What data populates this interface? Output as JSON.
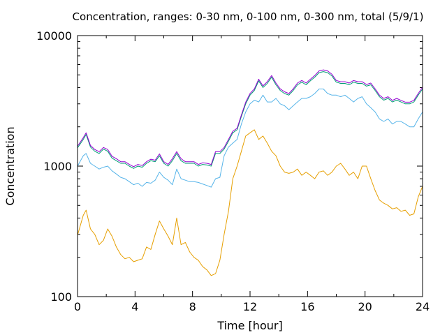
{
  "chart_data": {
    "type": "line",
    "title": "Concentration, ranges: 0-30 nm, 0-100 nm, 0-300 nm, total (5/9/1)",
    "xlabel": "Time [hour]",
    "ylabel": "Concentration",
    "xlim": [
      0,
      24
    ],
    "ylim": [
      100,
      10000
    ],
    "yscale": "log",
    "grid": false,
    "legend": "none",
    "x_ticks": [
      0,
      4,
      8,
      12,
      16,
      20,
      24
    ],
    "x_tick_labels": [
      "0",
      "4",
      "8",
      "12",
      "16",
      "20",
      "24"
    ],
    "y_ticks": [
      100,
      1000,
      10000
    ],
    "y_tick_labels": [
      "100",
      "1000",
      "10000"
    ],
    "series": [
      {
        "color": "#e69f00",
        "x": [
          0,
          0.4,
          0.6,
          0.9,
          1.2,
          1.5,
          1.8,
          2.1,
          2.4,
          2.7,
          3.0,
          3.3,
          3.6,
          3.9,
          4.2,
          4.5,
          4.8,
          5.1,
          5.4,
          5.7,
          6.0,
          6.3,
          6.6,
          6.9,
          7.2,
          7.5,
          7.8,
          8.1,
          8.4,
          8.7,
          9.0,
          9.3,
          9.6,
          9.9,
          10.2,
          10.5,
          10.8,
          11.1,
          11.4,
          11.7,
          12.0,
          12.3,
          12.6,
          12.9,
          13.2,
          13.5,
          13.8,
          14.1,
          14.4,
          14.7,
          15.0,
          15.3,
          15.6,
          15.9,
          16.2,
          16.5,
          16.8,
          17.1,
          17.4,
          17.7,
          18.0,
          18.3,
          18.6,
          18.9,
          19.2,
          19.5,
          19.8,
          20.1,
          20.4,
          20.7,
          21.0,
          21.3,
          21.6,
          21.9,
          22.2,
          22.5,
          22.8,
          23.1,
          23.4,
          23.7,
          24.0
        ],
        "values": [
          295,
          420,
          460,
          330,
          300,
          250,
          270,
          330,
          290,
          240,
          210,
          195,
          200,
          185,
          190,
          195,
          240,
          230,
          300,
          380,
          330,
          290,
          250,
          400,
          250,
          260,
          220,
          200,
          190,
          170,
          160,
          145,
          150,
          190,
          300,
          450,
          800,
          1000,
          1300,
          1700,
          1800,
          1900,
          1600,
          1700,
          1500,
          1300,
          1200,
          1000,
          900,
          880,
          900,
          950,
          850,
          900,
          850,
          800,
          900,
          920,
          850,
          900,
          1000,
          1050,
          950,
          850,
          900,
          800,
          1000,
          1000,
          800,
          650,
          550,
          520,
          500,
          470,
          480,
          450,
          460,
          420,
          430,
          580,
          700
        ]
      },
      {
        "color": "#56b4e9",
        "x": [
          0,
          0.4,
          0.6,
          0.9,
          1.2,
          1.5,
          1.8,
          2.1,
          2.4,
          2.7,
          3.0,
          3.3,
          3.6,
          3.9,
          4.2,
          4.5,
          4.8,
          5.1,
          5.4,
          5.7,
          6.0,
          6.3,
          6.6,
          6.9,
          7.2,
          7.5,
          7.8,
          8.1,
          8.4,
          8.7,
          9.0,
          9.3,
          9.6,
          9.9,
          10.2,
          10.5,
          10.8,
          11.1,
          11.4,
          11.7,
          12.0,
          12.3,
          12.6,
          12.9,
          13.2,
          13.5,
          13.8,
          14.1,
          14.4,
          14.7,
          15.0,
          15.3,
          15.6,
          15.9,
          16.2,
          16.5,
          16.8,
          17.1,
          17.4,
          17.7,
          18.0,
          18.3,
          18.6,
          18.9,
          19.2,
          19.5,
          19.8,
          20.1,
          20.4,
          20.7,
          21.0,
          21.3,
          21.6,
          21.9,
          22.2,
          22.5,
          22.8,
          23.1,
          23.4,
          23.7,
          24.0
        ],
        "values": [
          1000,
          1200,
          1250,
          1050,
          1000,
          950,
          980,
          1000,
          920,
          870,
          820,
          800,
          760,
          720,
          740,
          700,
          750,
          740,
          780,
          900,
          820,
          780,
          720,
          950,
          800,
          780,
          760,
          760,
          750,
          730,
          710,
          690,
          800,
          820,
          1200,
          1400,
          1500,
          1600,
          2100,
          2600,
          3000,
          3200,
          3100,
          3500,
          3100,
          3100,
          3300,
          3000,
          2900,
          2700,
          2900,
          3100,
          3300,
          3300,
          3400,
          3600,
          3900,
          3900,
          3600,
          3500,
          3500,
          3400,
          3500,
          3300,
          3100,
          3300,
          3400,
          3000,
          2800,
          2600,
          2300,
          2200,
          2300,
          2100,
          2200,
          2200,
          2100,
          2000,
          2000,
          2300,
          2600
        ]
      },
      {
        "color": "#009e73",
        "x": [
          0,
          0.4,
          0.6,
          0.9,
          1.2,
          1.5,
          1.8,
          2.1,
          2.4,
          2.7,
          3.0,
          3.3,
          3.6,
          3.9,
          4.2,
          4.5,
          4.8,
          5.1,
          5.4,
          5.7,
          6.0,
          6.3,
          6.6,
          6.9,
          7.2,
          7.5,
          7.8,
          8.1,
          8.4,
          8.7,
          9.0,
          9.3,
          9.6,
          9.9,
          10.2,
          10.5,
          10.8,
          11.1,
          11.4,
          11.7,
          12.0,
          12.3,
          12.6,
          12.9,
          13.2,
          13.5,
          13.8,
          14.1,
          14.4,
          14.7,
          15.0,
          15.3,
          15.6,
          15.9,
          16.2,
          16.5,
          16.8,
          17.1,
          17.4,
          17.7,
          18.0,
          18.3,
          18.6,
          18.9,
          19.2,
          19.5,
          19.8,
          20.1,
          20.4,
          20.7,
          21.0,
          21.3,
          21.6,
          21.9,
          22.2,
          22.5,
          22.8,
          23.1,
          23.4,
          23.7,
          24.0
        ],
        "values": [
          1380,
          1600,
          1750,
          1400,
          1300,
          1250,
          1350,
          1300,
          1150,
          1100,
          1050,
          1050,
          1000,
          960,
          1000,
          980,
          1050,
          1100,
          1080,
          1200,
          1050,
          1000,
          1100,
          1250,
          1100,
          1050,
          1050,
          1050,
          1000,
          1030,
          1020,
          1000,
          1250,
          1250,
          1350,
          1550,
          1800,
          1900,
          2400,
          3000,
          3500,
          3800,
          4500,
          4000,
          4300,
          4800,
          4200,
          3800,
          3600,
          3500,
          3800,
          4200,
          4400,
          4200,
          4500,
          4800,
          5200,
          5300,
          5200,
          4900,
          4400,
          4300,
          4300,
          4200,
          4400,
          4300,
          4300,
          4100,
          4200,
          3800,
          3400,
          3200,
          3300,
          3100,
          3200,
          3100,
          3000,
          3000,
          3100,
          3500,
          3900
        ]
      },
      {
        "color": "#9400d3",
        "x": [
          0,
          0.4,
          0.6,
          0.9,
          1.2,
          1.5,
          1.8,
          2.1,
          2.4,
          2.7,
          3.0,
          3.3,
          3.6,
          3.9,
          4.2,
          4.5,
          4.8,
          5.1,
          5.4,
          5.7,
          6.0,
          6.3,
          6.6,
          6.9,
          7.2,
          7.5,
          7.8,
          8.1,
          8.4,
          8.7,
          9.0,
          9.3,
          9.6,
          9.9,
          10.2,
          10.5,
          10.8,
          11.1,
          11.4,
          11.7,
          12.0,
          12.3,
          12.6,
          12.9,
          13.2,
          13.5,
          13.8,
          14.1,
          14.4,
          14.7,
          15.0,
          15.3,
          15.6,
          15.9,
          16.2,
          16.5,
          16.8,
          17.1,
          17.4,
          17.7,
          18.0,
          18.3,
          18.6,
          18.9,
          19.2,
          19.5,
          19.8,
          20.1,
          20.4,
          20.7,
          21.0,
          21.3,
          21.6,
          21.9,
          22.2,
          22.5,
          22.8,
          23.1,
          23.4,
          23.7,
          24.0
        ],
        "values": [
          1420,
          1650,
          1800,
          1440,
          1340,
          1290,
          1390,
          1340,
          1190,
          1140,
          1080,
          1080,
          1030,
          990,
          1030,
          1010,
          1080,
          1130,
          1110,
          1240,
          1080,
          1030,
          1140,
          1290,
          1140,
          1080,
          1080,
          1080,
          1030,
          1060,
          1050,
          1030,
          1290,
          1290,
          1390,
          1600,
          1850,
          1950,
          2470,
          3090,
          3600,
          3910,
          4630,
          4120,
          4430,
          4940,
          4330,
          3910,
          3710,
          3600,
          3910,
          4330,
          4530,
          4330,
          4630,
          4940,
          5360,
          5460,
          5360,
          5050,
          4530,
          4430,
          4430,
          4330,
          4530,
          4430,
          4430,
          4220,
          4330,
          3910,
          3500,
          3300,
          3400,
          3190,
          3300,
          3190,
          3090,
          3090,
          3190,
          3600,
          4020
        ]
      }
    ]
  }
}
